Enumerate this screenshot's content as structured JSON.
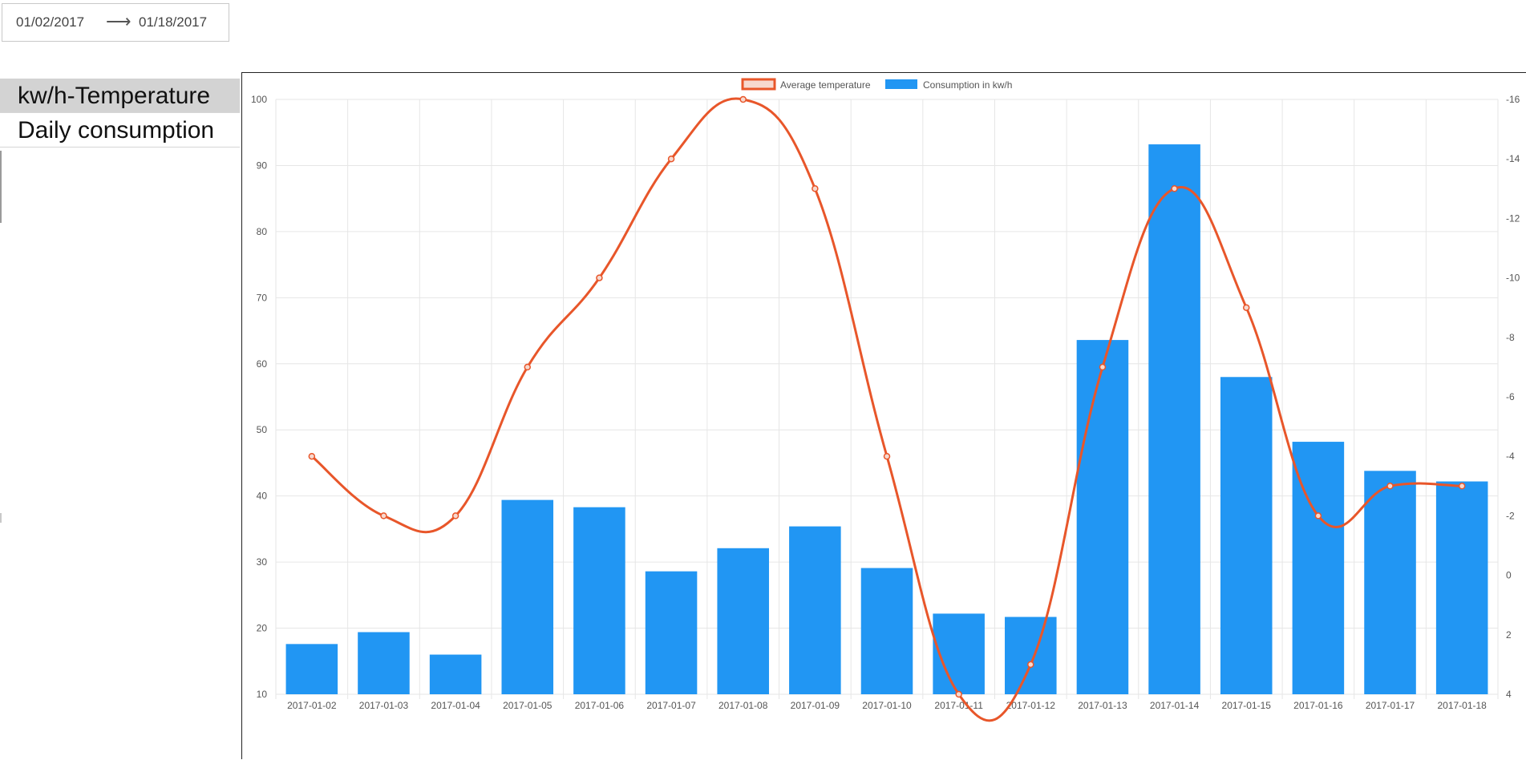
{
  "date_range": {
    "start": "01/02/2017",
    "arrow": "⟶",
    "end": "01/18/2017"
  },
  "sidebar": {
    "items": [
      {
        "label": "kw/h-Temperature",
        "active": true
      },
      {
        "label": "Daily consumption",
        "active": false
      }
    ]
  },
  "colors": {
    "bar": "#2196f3",
    "line": "#e8562a",
    "grid": "#e6e6e6"
  },
  "chart_data": {
    "type": "bar",
    "categories": [
      "2017-01-02",
      "2017-01-03",
      "2017-01-04",
      "2017-01-05",
      "2017-01-06",
      "2017-01-07",
      "2017-01-08",
      "2017-01-09",
      "2017-01-10",
      "2017-01-11",
      "2017-01-12",
      "2017-01-13",
      "2017-01-14",
      "2017-01-15",
      "2017-01-16",
      "2017-01-17",
      "2017-01-18"
    ],
    "series": [
      {
        "name": "Average temperature",
        "type": "line",
        "axis": "right",
        "color": "#e8562a",
        "values": [
          -4,
          -2,
          -2,
          -7,
          -10,
          -14,
          -16,
          -13,
          -4,
          4,
          3,
          -7,
          -13,
          -9,
          -2,
          -3,
          -3
        ]
      },
      {
        "name": "Consumption in kw/h",
        "type": "bar",
        "axis": "left",
        "color": "#2196f3",
        "values": [
          17.6,
          19.4,
          16.0,
          39.4,
          38.3,
          28.6,
          32.1,
          35.4,
          29.1,
          22.2,
          21.7,
          63.6,
          93.2,
          58.0,
          48.2,
          43.8,
          42.2
        ]
      }
    ],
    "y_left": {
      "min": 10,
      "max": 100,
      "ticks": [
        100,
        90,
        80,
        70,
        60,
        50,
        40,
        30,
        20,
        10
      ]
    },
    "y_right": {
      "min": -16,
      "max": 4,
      "reversed": true,
      "ticks": [
        -16,
        -14,
        -12,
        -10,
        -8,
        -6,
        -4,
        -2,
        0,
        2,
        4
      ]
    },
    "legend": {
      "placement": "top-center"
    },
    "grid": true
  }
}
